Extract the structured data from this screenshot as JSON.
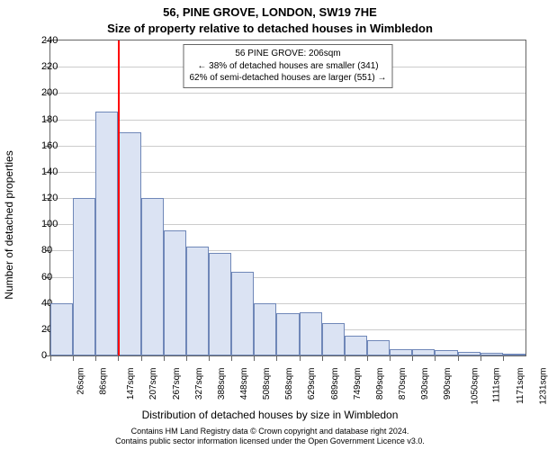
{
  "title": "56, PINE GROVE, LONDON, SW19 7HE",
  "subtitle": "Size of property relative to detached houses in Wimbledon",
  "y_axis_label": "Number of detached properties",
  "x_axis_label": "Distribution of detached houses by size in Wimbledon",
  "footer_line1": "Contains HM Land Registry data © Crown copyright and database right 2024.",
  "footer_line2": "Contains public sector information licensed under the Open Government Licence v3.0.",
  "chart": {
    "type": "histogram",
    "background_color": "#ffffff",
    "grid_color": "#cccccc",
    "axis_color": "#666666",
    "bar_fill": "#dbe3f3",
    "bar_border": "#6f87b8",
    "bar_border_width": 1,
    "marker_color": "#ff0000",
    "ylim": [
      0,
      240
    ],
    "yticks": [
      0,
      20,
      40,
      60,
      80,
      100,
      120,
      140,
      160,
      180,
      200,
      220,
      240
    ],
    "x_categories": [
      "26sqm",
      "86sqm",
      "147sqm",
      "207sqm",
      "267sqm",
      "327sqm",
      "388sqm",
      "448sqm",
      "508sqm",
      "568sqm",
      "629sqm",
      "689sqm",
      "749sqm",
      "809sqm",
      "870sqm",
      "930sqm",
      "990sqm",
      "1050sqm",
      "1111sqm",
      "1171sqm",
      "1231sqm"
    ],
    "values": [
      40,
      120,
      186,
      170,
      120,
      95,
      83,
      78,
      64,
      40,
      32,
      33,
      25,
      15,
      12,
      5,
      5,
      4,
      3,
      2,
      1
    ],
    "marker_index_position": 2.97,
    "annotation": {
      "line1": "56 PINE GROVE: 206sqm",
      "line2": "← 38% of detached houses are smaller (341)",
      "line3": "62% of semi-detached houses are larger (551) →",
      "border_color": "#666666",
      "background": "#ffffff",
      "fontsize": 10
    },
    "title_fontsize": 13,
    "label_fontsize": 12,
    "tick_fontsize": 11,
    "xtick_fontsize": 10
  }
}
